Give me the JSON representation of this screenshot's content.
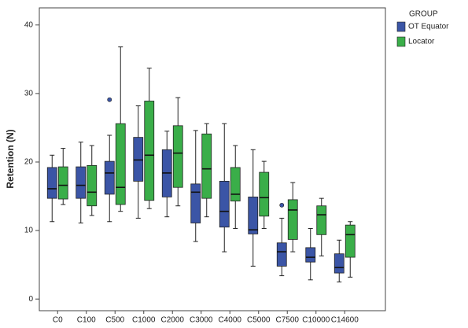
{
  "chart_data": {
    "type": "boxplot",
    "y_label": "Retention (N)",
    "legend_title": "GROUP",
    "legend_position": "outside-right",
    "categories": [
      "C0",
      "C100",
      "C500",
      "C1000",
      "C2000",
      "C3000",
      "C4000",
      "C5000",
      "C7500",
      "C10000",
      "C14600"
    ],
    "ylim": [
      -1.7,
      42.5
    ],
    "yticks": [
      0,
      10,
      20,
      30,
      40
    ],
    "grid": false,
    "series": [
      {
        "name": "OT Equator",
        "color": "#3b55a6",
        "min": [
          11.3,
          11.1,
          11.3,
          11.8,
          12.0,
          8.4,
          6.9,
          4.8,
          3.4,
          2.8,
          2.5
        ],
        "q1": [
          14.7,
          14.7,
          15.3,
          17.2,
          14.9,
          11.1,
          10.5,
          9.5,
          4.8,
          5.4,
          3.8
        ],
        "median": [
          16.1,
          16.6,
          18.4,
          20.3,
          18.4,
          15.6,
          12.8,
          10.1,
          6.9,
          6.1,
          4.6
        ],
        "q3": [
          19.2,
          19.3,
          20.1,
          23.6,
          21.8,
          16.8,
          17.2,
          14.9,
          8.2,
          7.5,
          6.6
        ],
        "max": [
          21.0,
          22.9,
          23.9,
          28.2,
          24.5,
          24.6,
          25.6,
          21.8,
          11.8,
          10.3,
          8.6
        ],
        "outliers": [
          null,
          null,
          29.1,
          null,
          null,
          null,
          null,
          null,
          13.7,
          null,
          null
        ]
      },
      {
        "name": "Locator",
        "color": "#3aae49",
        "min": [
          13.8,
          12.2,
          12.8,
          13.2,
          13.6,
          12.0,
          10.3,
          10.3,
          6.9,
          6.3,
          3.2
        ],
        "q1": [
          14.6,
          13.6,
          13.8,
          14.4,
          16.3,
          14.7,
          14.3,
          12.1,
          8.7,
          9.4,
          6.1
        ],
        "median": [
          16.6,
          15.6,
          16.3,
          21.0,
          21.3,
          19.0,
          15.3,
          14.8,
          13.0,
          12.3,
          9.4
        ],
        "q3": [
          19.3,
          19.5,
          25.6,
          28.9,
          25.3,
          24.1,
          19.2,
          18.5,
          14.5,
          13.6,
          10.8
        ],
        "max": [
          22.0,
          22.4,
          36.8,
          33.7,
          29.4,
          25.6,
          22.4,
          20.1,
          17.0,
          14.7,
          11.3
        ],
        "outliers": [
          null,
          null,
          null,
          null,
          null,
          null,
          null,
          null,
          null,
          null,
          null
        ]
      }
    ]
  }
}
